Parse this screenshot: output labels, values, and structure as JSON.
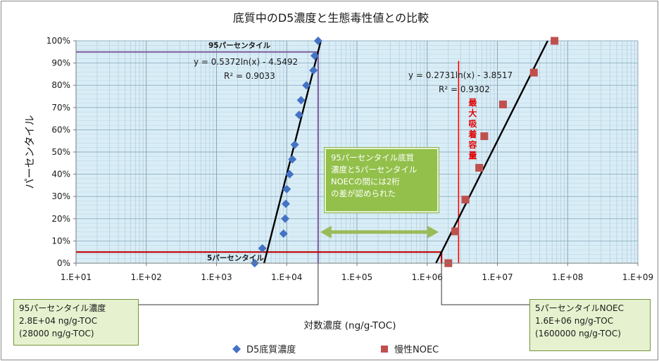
{
  "chart_data": {
    "type": "scatter",
    "title": "底質中のD5濃度と生態毒性値との比較",
    "xlabel": "対数濃度 (ng/g-TOC)",
    "ylabel": "パーセンタイル",
    "x_scale": "log",
    "xlim": [
      "1.E+01",
      "1.E+09"
    ],
    "ylim": [
      0,
      1
    ],
    "x_ticks": [
      "1.E+01",
      "1.E+02",
      "1.E+03",
      "1.E+04",
      "1.E+05",
      "1.E+06",
      "1.E+07",
      "1.E+08",
      "1.E+09"
    ],
    "y_ticks": [
      "0%",
      "10%",
      "20%",
      "30%",
      "40%",
      "50%",
      "60%",
      "70%",
      "80%",
      "90%",
      "100%"
    ],
    "grid": true,
    "legend_position": "bottom",
    "series": [
      {
        "name": "D5底質濃度",
        "marker": "diamond",
        "color": "#4472c4",
        "points": [
          {
            "x": 3500,
            "y": 0.0
          },
          {
            "x": 4500,
            "y": 0.067
          },
          {
            "x": 9000,
            "y": 0.133
          },
          {
            "x": 9500,
            "y": 0.2
          },
          {
            "x": 9700,
            "y": 0.267
          },
          {
            "x": 10000,
            "y": 0.333
          },
          {
            "x": 11000,
            "y": 0.4
          },
          {
            "x": 12000,
            "y": 0.467
          },
          {
            "x": 13000,
            "y": 0.533
          },
          {
            "x": 15000,
            "y": 0.667
          },
          {
            "x": 16000,
            "y": 0.733
          },
          {
            "x": 19000,
            "y": 0.8
          },
          {
            "x": 24000,
            "y": 0.867
          },
          {
            "x": 25000,
            "y": 0.933
          },
          {
            "x": 28000,
            "y": 1.0
          }
        ],
        "trendline": {
          "equation": "y = 0.5372ln(x) - 4.5492",
          "r2": "R² = 0.9033",
          "a": 0.5372,
          "b": -4.5492,
          "color": "#000000"
        }
      },
      {
        "name": "慢性NOEC",
        "marker": "square",
        "color": "#c0504d",
        "points": [
          {
            "x": 2000000,
            "y": 0.0
          },
          {
            "x": 2500000,
            "y": 0.143
          },
          {
            "x": 3500000,
            "y": 0.286
          },
          {
            "x": 5500000,
            "y": 0.429
          },
          {
            "x": 6500000,
            "y": 0.571
          },
          {
            "x": 12000000,
            "y": 0.714
          },
          {
            "x": 33000000,
            "y": 0.857
          },
          {
            "x": 65000000,
            "y": 1.0
          }
        ],
        "trendline": {
          "equation": "y = 0.2731ln(x) - 3.8517",
          "r2": "R² = 0.9302",
          "a": 0.2731,
          "b": -3.8517,
          "color": "#000000"
        }
      }
    ],
    "reference_lines": {
      "p95_label": "95パーセンタイル",
      "p95_level": 0.95,
      "p95_x": 28000,
      "p95_color": "#8064a2",
      "p5_label": "5パーセンタイル",
      "p5_level": 0.05,
      "p5_x": 1600000,
      "p5_color": "#c00000",
      "max_adsorption_label": "最大吸着容量",
      "max_adsorption_x": 2800000,
      "max_adsorption_color": "#ff0000"
    },
    "gap_arrow_color": "#9bbb59"
  },
  "callouts": {
    "left": {
      "line1": "95パーセンタイル濃度",
      "line2": "2.8E+04 ng/g-TOC",
      "line3": "(28000 ng/g-TOC)"
    },
    "right": {
      "line1": "5パーセンタイルNOEC",
      "line2": "1.6E+06 ng/g-TOC",
      "line3": "(1600000 ng/g-TOC)"
    },
    "middle": {
      "line1": "95パーセンタイル底質",
      "line2": "濃度と5パーセンタイル",
      "line3": "NOECの間には2桁",
      "line4": "の差が認められた"
    }
  },
  "legend": [
    {
      "label": "D5底質濃度",
      "marker": "diamond-icon",
      "color": "#4472c4"
    },
    {
      "label": "慢性NOEC",
      "marker": "square-icon",
      "color": "#c0504d"
    }
  ]
}
